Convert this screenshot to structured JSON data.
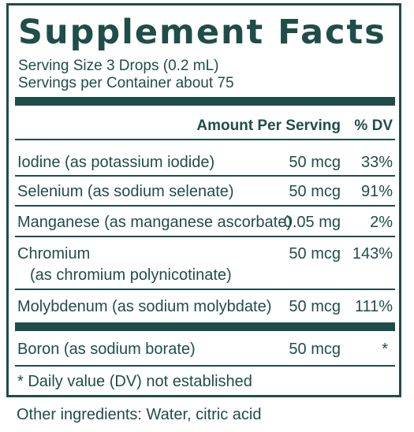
{
  "title": "Supplement Facts",
  "serving_size": "Serving Size 3 Drops (0.2 mL)",
  "servings_per_container": "Servings per Container about 75",
  "header": {
    "amount": "Amount Per Serving",
    "dv": "% DV"
  },
  "rows": [
    {
      "name": "Iodine (as potassium iodide)",
      "amount": "50 mcg",
      "dv": "33%"
    },
    {
      "name": "Selenium (as sodium selenate)",
      "amount": "50 mcg",
      "dv": "91%"
    },
    {
      "name": "Manganese (as manganese ascorbate)",
      "amount": "0.05 mg",
      "dv": "2%"
    },
    {
      "name": "Chromium",
      "name_line2": "(as chromium polynicotinate)",
      "amount": "50 mcg",
      "dv": "143%"
    },
    {
      "name": "Molybdenum (as sodium molybdate)",
      "amount": "50 mcg",
      "dv": "111%"
    },
    {
      "name": "Boron (as sodium borate)",
      "amount": "50 mcg",
      "dv": "*"
    }
  ],
  "footnote": "* Daily value (DV) not established",
  "other_ingredients": "Other ingredients: Water, citric acid",
  "colors": {
    "primary": "#1f4d4a",
    "background": "#ffffff"
  }
}
